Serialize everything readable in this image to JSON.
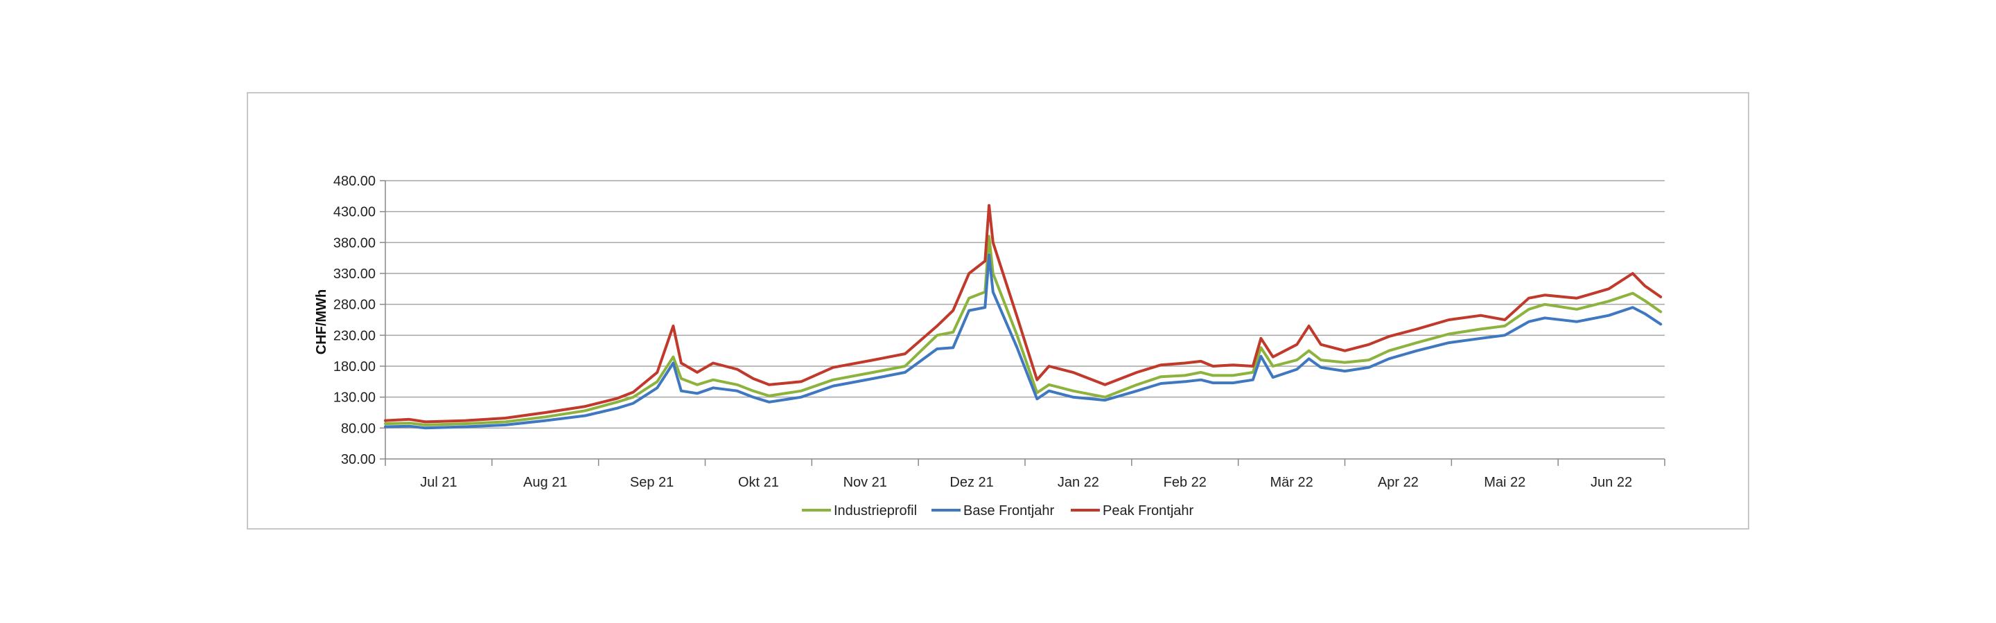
{
  "chart_data": {
    "type": "line",
    "title": "",
    "xlabel": "",
    "ylabel": "CHF/MWh",
    "ylim": [
      30,
      480
    ],
    "yticks": [
      "480.00",
      "430.00",
      "380.00",
      "330.00",
      "280.00",
      "230.00",
      "180.00",
      "130.00",
      "80.00",
      "30.00"
    ],
    "x_categories": [
      "Jul 21",
      "Aug 21",
      "Sep 21",
      "Okt 21",
      "Nov 21",
      "Dez 21",
      "Jan 22",
      "Feb 22",
      "Mär 22",
      "Apr 22",
      "Mai 22",
      "Jun 22"
    ],
    "grid": "horizontal",
    "legend_position": "bottom",
    "series": [
      {
        "name": "Industrieprofil",
        "color": "#8db33f",
        "points": [
          [
            0,
            87
          ],
          [
            0.3,
            88
          ],
          [
            0.5,
            85
          ],
          [
            1,
            87
          ],
          [
            1.5,
            90
          ],
          [
            2,
            98
          ],
          [
            2.5,
            108
          ],
          [
            2.9,
            122
          ],
          [
            3.1,
            130
          ],
          [
            3.4,
            155
          ],
          [
            3.6,
            195
          ],
          [
            3.7,
            160
          ],
          [
            3.9,
            150
          ],
          [
            4.1,
            158
          ],
          [
            4.4,
            150
          ],
          [
            4.6,
            140
          ],
          [
            4.8,
            132
          ],
          [
            5.2,
            140
          ],
          [
            5.6,
            158
          ],
          [
            6.1,
            170
          ],
          [
            6.5,
            180
          ],
          [
            6.9,
            230
          ],
          [
            7.1,
            235
          ],
          [
            7.3,
            290
          ],
          [
            7.5,
            300
          ],
          [
            7.55,
            390
          ],
          [
            7.6,
            330
          ],
          [
            7.9,
            230
          ],
          [
            8.15,
            137
          ],
          [
            8.3,
            150
          ],
          [
            8.6,
            140
          ],
          [
            9.0,
            130
          ],
          [
            9.4,
            150
          ],
          [
            9.7,
            163
          ],
          [
            10.0,
            165
          ],
          [
            10.2,
            170
          ],
          [
            10.35,
            165
          ],
          [
            10.6,
            165
          ],
          [
            10.85,
            170
          ],
          [
            10.95,
            210
          ],
          [
            11.1,
            180
          ],
          [
            11.4,
            190
          ],
          [
            11.55,
            205
          ],
          [
            11.7,
            190
          ],
          [
            12.0,
            186
          ],
          [
            12.3,
            190
          ],
          [
            12.55,
            205
          ],
          [
            12.9,
            218
          ],
          [
            13.3,
            232
          ],
          [
            13.7,
            240
          ],
          [
            14.0,
            245
          ],
          [
            14.3,
            272
          ],
          [
            14.5,
            280
          ],
          [
            14.9,
            272
          ],
          [
            15.3,
            285
          ],
          [
            15.6,
            298
          ],
          [
            15.75,
            286
          ],
          [
            15.95,
            268
          ]
        ]
      },
      {
        "name": "Base Frontjahr",
        "color": "#3f78c1",
        "points": [
          [
            0,
            82
          ],
          [
            0.3,
            83
          ],
          [
            0.5,
            80
          ],
          [
            1,
            82
          ],
          [
            1.5,
            85
          ],
          [
            2,
            92
          ],
          [
            2.5,
            100
          ],
          [
            2.9,
            112
          ],
          [
            3.1,
            120
          ],
          [
            3.4,
            145
          ],
          [
            3.6,
            185
          ],
          [
            3.7,
            140
          ],
          [
            3.9,
            136
          ],
          [
            4.1,
            145
          ],
          [
            4.4,
            140
          ],
          [
            4.6,
            130
          ],
          [
            4.8,
            122
          ],
          [
            5.2,
            130
          ],
          [
            5.6,
            148
          ],
          [
            6.1,
            160
          ],
          [
            6.5,
            170
          ],
          [
            6.9,
            208
          ],
          [
            7.1,
            210
          ],
          [
            7.3,
            270
          ],
          [
            7.5,
            275
          ],
          [
            7.55,
            360
          ],
          [
            7.6,
            300
          ],
          [
            7.9,
            210
          ],
          [
            8.15,
            127
          ],
          [
            8.3,
            140
          ],
          [
            8.6,
            130
          ],
          [
            9.0,
            125
          ],
          [
            9.4,
            140
          ],
          [
            9.7,
            152
          ],
          [
            10.0,
            155
          ],
          [
            10.2,
            158
          ],
          [
            10.35,
            153
          ],
          [
            10.6,
            153
          ],
          [
            10.85,
            158
          ],
          [
            10.95,
            196
          ],
          [
            11.1,
            162
          ],
          [
            11.4,
            175
          ],
          [
            11.55,
            192
          ],
          [
            11.7,
            178
          ],
          [
            12.0,
            172
          ],
          [
            12.3,
            178
          ],
          [
            12.55,
            192
          ],
          [
            12.9,
            205
          ],
          [
            13.3,
            218
          ],
          [
            13.7,
            225
          ],
          [
            14.0,
            230
          ],
          [
            14.3,
            252
          ],
          [
            14.5,
            258
          ],
          [
            14.9,
            252
          ],
          [
            15.3,
            262
          ],
          [
            15.6,
            275
          ],
          [
            15.75,
            265
          ],
          [
            15.95,
            248
          ]
        ]
      },
      {
        "name": "Peak Frontjahr",
        "color": "#c0392b",
        "points": [
          [
            0,
            92
          ],
          [
            0.3,
            94
          ],
          [
            0.5,
            90
          ],
          [
            1,
            92
          ],
          [
            1.5,
            96
          ],
          [
            2,
            105
          ],
          [
            2.5,
            115
          ],
          [
            2.9,
            128
          ],
          [
            3.1,
            138
          ],
          [
            3.4,
            170
          ],
          [
            3.6,
            245
          ],
          [
            3.7,
            185
          ],
          [
            3.9,
            170
          ],
          [
            4.1,
            185
          ],
          [
            4.4,
            175
          ],
          [
            4.6,
            160
          ],
          [
            4.8,
            150
          ],
          [
            5.2,
            155
          ],
          [
            5.6,
            178
          ],
          [
            6.1,
            190
          ],
          [
            6.5,
            200
          ],
          [
            6.9,
            245
          ],
          [
            7.1,
            270
          ],
          [
            7.3,
            330
          ],
          [
            7.5,
            350
          ],
          [
            7.55,
            440
          ],
          [
            7.6,
            380
          ],
          [
            7.9,
            260
          ],
          [
            8.15,
            158
          ],
          [
            8.3,
            180
          ],
          [
            8.6,
            170
          ],
          [
            9.0,
            150
          ],
          [
            9.4,
            170
          ],
          [
            9.7,
            182
          ],
          [
            10.0,
            185
          ],
          [
            10.2,
            188
          ],
          [
            10.35,
            180
          ],
          [
            10.6,
            182
          ],
          [
            10.85,
            180
          ],
          [
            10.95,
            225
          ],
          [
            11.1,
            195
          ],
          [
            11.4,
            215
          ],
          [
            11.55,
            245
          ],
          [
            11.7,
            215
          ],
          [
            12.0,
            205
          ],
          [
            12.3,
            215
          ],
          [
            12.55,
            228
          ],
          [
            12.9,
            240
          ],
          [
            13.3,
            255
          ],
          [
            13.7,
            262
          ],
          [
            14.0,
            255
          ],
          [
            14.3,
            290
          ],
          [
            14.5,
            295
          ],
          [
            14.9,
            290
          ],
          [
            15.3,
            305
          ],
          [
            15.6,
            330
          ],
          [
            15.75,
            310
          ],
          [
            15.95,
            292
          ]
        ]
      }
    ]
  }
}
